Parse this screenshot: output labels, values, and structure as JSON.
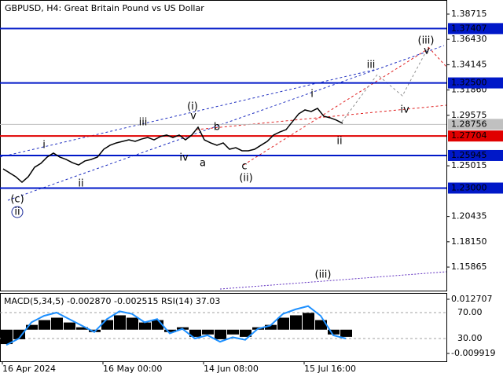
{
  "chart_data": [
    {
      "type": "line",
      "title": "GBPUSD, H4:  Great Britain Pound vs US Dollar",
      "color": "#000000",
      "categories": [
        "16 Apr 2024",
        null,
        null,
        null,
        null,
        null,
        null,
        null,
        null,
        null,
        null,
        null,
        null,
        null,
        null,
        null,
        "16 May 00:00",
        null,
        null,
        null,
        null,
        null,
        null,
        null,
        null,
        null,
        null,
        null,
        null,
        null,
        null,
        null,
        "14 Jun 08:00",
        null,
        null,
        null,
        null,
        null,
        null,
        null,
        null,
        null,
        null,
        null,
        null,
        null,
        null,
        null,
        "15 Jul 16:00",
        null,
        null,
        null,
        null,
        null,
        null,
        null,
        null,
        null,
        null,
        null,
        null,
        null,
        null,
        null,
        null,
        null,
        null,
        null,
        null,
        null,
        null
      ],
      "values": [
        1.2474,
        1.2438,
        1.2403,
        1.2353,
        1.2403,
        1.2488,
        1.2523,
        1.258,
        1.2616,
        1.258,
        1.2559,
        1.253,
        1.2509,
        1.2545,
        1.2559,
        1.258,
        1.2651,
        1.2687,
        1.2708,
        1.2722,
        1.2736,
        1.2722,
        1.2743,
        1.2757,
        1.2736,
        1.2765,
        1.2779,
        1.2757,
        1.2779,
        1.2736,
        1.2779,
        1.285,
        1.2736,
        1.2708,
        1.2687,
        1.2708,
        1.2651,
        1.2665,
        1.2637,
        1.2637,
        1.2651,
        1.2687,
        1.2722,
        1.2779,
        1.2807,
        1.2828,
        1.2899,
        1.297,
        1.3006,
        1.2992,
        1.302,
        1.2949,
        1.2935,
        1.2914,
        1.2885,
        null,
        null,
        null,
        null,
        null,
        null,
        null,
        null,
        null,
        null,
        null,
        null,
        null,
        null,
        null,
        null
      ],
      "ylim": [
        1.1374,
        1.3999
      ],
      "yticks": [
        {
          "value": 1.38715,
          "label": "1.38715"
        },
        {
          "value": 1.3643,
          "label": "1.36430"
        },
        {
          "value": 1.34145,
          "label": "1.34145"
        },
        {
          "value": 1.3186,
          "label": "1.31860"
        },
        {
          "value": 1.29575,
          "label": "1.29575"
        },
        {
          "value": 1.25015,
          "label": "1.25015"
        },
        {
          "value": 1.20435,
          "label": "1.20435"
        },
        {
          "value": 1.1815,
          "label": "1.18150"
        },
        {
          "value": 1.15865,
          "label": "1.15865"
        }
      ],
      "levels": [
        {
          "value": 1.37407,
          "label": "1.37407",
          "color": "#0018c8"
        },
        {
          "value": 1.325,
          "label": "1.32500",
          "color": "#0018c8"
        },
        {
          "value": 1.28756,
          "label": "1.28756",
          "color": "#c0c0c0"
        },
        {
          "value": 1.27704,
          "label": "1.27704",
          "color": "#e00000"
        },
        {
          "value": 1.25945,
          "label": "1.25945",
          "color": "#0018c8"
        },
        {
          "value": 1.23,
          "label": "1.23000",
          "color": "#0018c8"
        }
      ],
      "annotations": [
        {
          "text": "(c)",
          "color": "#d02020"
        },
        {
          "text": "ii",
          "color": "#1a2a9a"
        },
        {
          "text": "i",
          "color": "#707070"
        },
        {
          "text": "ii",
          "color": "#707070"
        },
        {
          "text": "iii",
          "color": "#707070"
        },
        {
          "text": "(i)",
          "color": "#d02020"
        },
        {
          "text": "v",
          "color": "#707070"
        },
        {
          "text": "b",
          "color": "#707070"
        },
        {
          "text": "iv",
          "color": "#707070"
        },
        {
          "text": "a",
          "color": "#707070"
        },
        {
          "text": "c",
          "color": "#707070"
        },
        {
          "text": "(ii)",
          "color": "#d02020"
        },
        {
          "text": "i",
          "color": "#707070"
        },
        {
          "text": "ii",
          "color": "#707070"
        },
        {
          "text": "iii",
          "color": "#909090"
        },
        {
          "text": "iv",
          "color": "#909090"
        },
        {
          "text": "v",
          "color": "#909090"
        },
        {
          "text": "(iii)",
          "color": "#d02020"
        },
        {
          "text": "(iii)",
          "color": "#d02020"
        }
      ]
    },
    {
      "type": "bar",
      "title": "MACD(5,34,5) -0.002870 -0.002515 RSI(14) 37.03",
      "color": "#000000",
      "values": [
        -0.006,
        -0.004,
        0.002,
        0.004,
        0.005,
        0.003,
        0.001,
        -0.001,
        0.004,
        0.006,
        0.005,
        0.003,
        0.004,
        -0.001,
        0.001,
        -0.003,
        -0.002,
        -0.004,
        -0.002,
        -0.003,
        0.001,
        0.002,
        0.005,
        0.006,
        0.007,
        0.004,
        -0.002,
        -0.003
      ],
      "ylim": [
        -0.0132,
        0.015
      ],
      "yticks": [
        0.012707,
        -0.009919
      ],
      "rsi_values": [
        20,
        30,
        55,
        65,
        70,
        60,
        50,
        40,
        60,
        72,
        68,
        55,
        60,
        38,
        45,
        30,
        35,
        25,
        32,
        28,
        45,
        50,
        68,
        75,
        80,
        65,
        35,
        30
      ],
      "rsi_color": "#1e90ff",
      "rsi_axis": "y2",
      "y2lim": [
        -5.15,
        99.09
      ],
      "y2ticks": [
        {
          "value": 70,
          "label": "70.00"
        },
        {
          "value": 30,
          "label": "30.00"
        }
      ]
    }
  ]
}
